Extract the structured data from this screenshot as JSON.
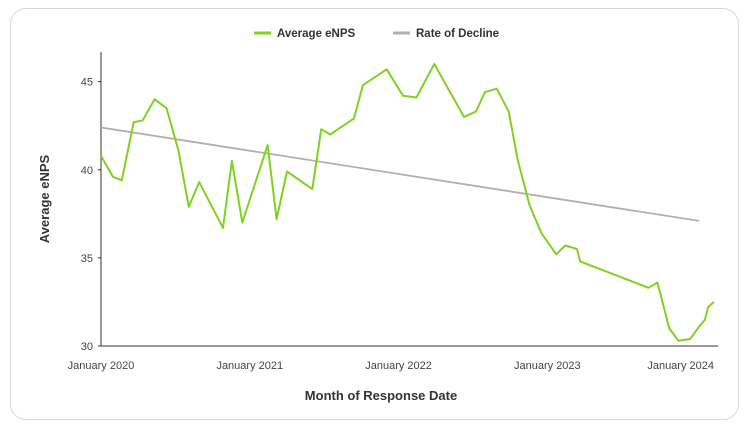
{
  "chart_data": {
    "type": "line",
    "title": "",
    "xlabel": "Month of Response Date",
    "ylabel": "Average eNPS",
    "ylim": [
      30,
      46
    ],
    "yticks": [
      30,
      35,
      40,
      45
    ],
    "xticks": [
      {
        "label": "January 2020",
        "x": 2020.0
      },
      {
        "label": "January 2021",
        "x": 2021.0
      },
      {
        "label": "January 2022",
        "x": 2022.0
      },
      {
        "label": "January 2023",
        "x": 2023.0
      },
      {
        "label": "January 2024",
        "x": 2024.0
      }
    ],
    "xlim": [
      2020.0,
      2024.1
    ],
    "grid": false,
    "legend_position": "top-center",
    "series": [
      {
        "name": "Average eNPS",
        "color": "#7ed321",
        "points": [
          [
            2020.0,
            40.8
          ],
          [
            2020.08,
            39.6
          ],
          [
            2020.14,
            39.4
          ],
          [
            2020.22,
            42.7
          ],
          [
            2020.28,
            42.8
          ],
          [
            2020.36,
            44.0
          ],
          [
            2020.44,
            43.5
          ],
          [
            2020.52,
            41.1
          ],
          [
            2020.59,
            37.9
          ],
          [
            2020.66,
            39.3
          ],
          [
            2020.82,
            36.7
          ],
          [
            2020.88,
            40.5
          ],
          [
            2020.95,
            37.0
          ],
          [
            2021.12,
            41.4
          ],
          [
            2021.18,
            37.2
          ],
          [
            2021.25,
            39.9
          ],
          [
            2021.42,
            38.9
          ],
          [
            2021.48,
            42.3
          ],
          [
            2021.54,
            42.0
          ],
          [
            2021.7,
            42.9
          ],
          [
            2021.76,
            44.8
          ],
          [
            2021.92,
            45.7
          ],
          [
            2022.03,
            44.2
          ],
          [
            2022.12,
            44.1
          ],
          [
            2022.24,
            46.0
          ],
          [
            2022.44,
            43.0
          ],
          [
            2022.52,
            43.3
          ],
          [
            2022.58,
            44.4
          ],
          [
            2022.66,
            44.6
          ],
          [
            2022.74,
            43.3
          ],
          [
            2022.8,
            40.6
          ],
          [
            2022.88,
            38.0
          ],
          [
            2022.96,
            36.4
          ],
          [
            2023.06,
            35.2
          ],
          [
            2023.12,
            35.7
          ],
          [
            2023.2,
            35.5
          ],
          [
            2023.22,
            34.8
          ],
          [
            2023.68,
            33.3
          ],
          [
            2023.74,
            33.6
          ],
          [
            2023.82,
            31.0
          ],
          [
            2023.88,
            30.3
          ],
          [
            2023.96,
            30.4
          ],
          [
            2024.02,
            31.1
          ],
          [
            2024.06,
            31.5
          ],
          [
            2024.08,
            32.2
          ],
          [
            2024.12,
            32.5
          ]
        ]
      },
      {
        "name": "Rate of Decline",
        "color": "#b0b0b0",
        "points": [
          [
            2020.0,
            42.4
          ],
          [
            2024.02,
            37.1
          ]
        ]
      }
    ]
  }
}
